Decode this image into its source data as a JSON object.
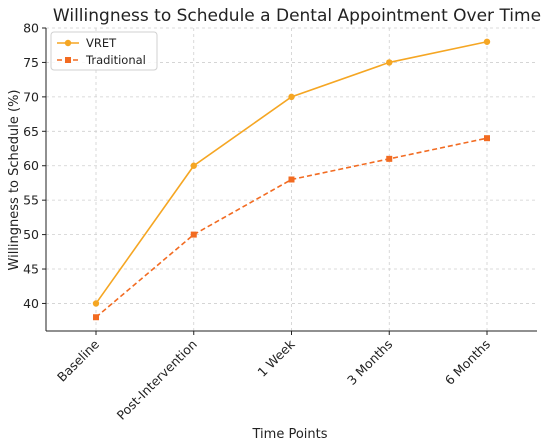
{
  "chart_data": {
    "type": "line",
    "title": "Willingness to Schedule a Dental Appointment Over Time",
    "xlabel": "Time Points",
    "ylabel": "Willingness to Schedule (%)",
    "categories": [
      "Baseline",
      "Post-Intervention",
      "1 Week",
      "3 Months",
      "6 Months"
    ],
    "ylim": [
      36,
      80
    ],
    "yticks": [
      40,
      45,
      50,
      55,
      60,
      65,
      70,
      75,
      80
    ],
    "grid": true,
    "legend_position": "top-left",
    "series": [
      {
        "name": "VRET",
        "values": [
          40,
          60,
          70,
          75,
          78
        ],
        "color": "#f5a623",
        "line_style": "solid",
        "marker": "circle"
      },
      {
        "name": "Traditional",
        "values": [
          38,
          50,
          58,
          61,
          64
        ],
        "color": "#f26b21",
        "line_style": "dashed",
        "marker": "square"
      }
    ]
  }
}
